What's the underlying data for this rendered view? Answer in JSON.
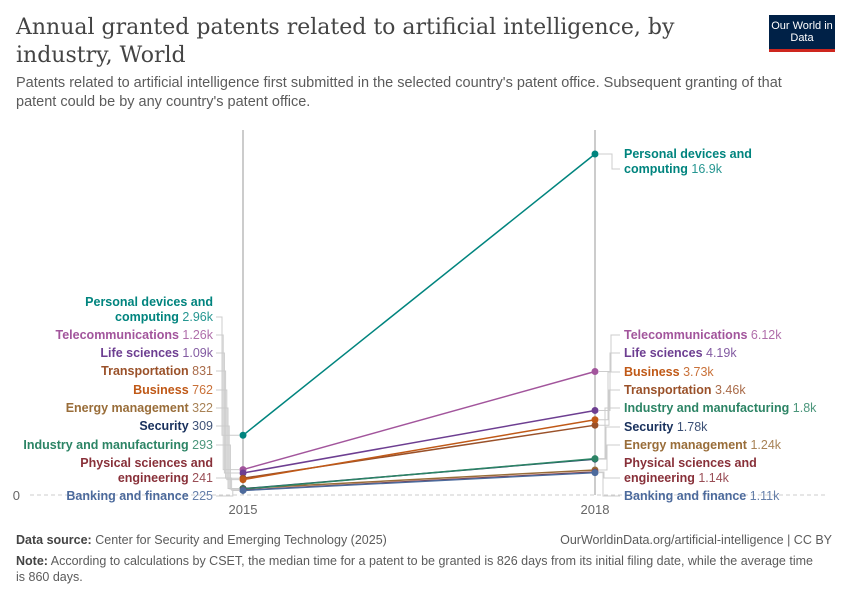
{
  "title": "Annual granted patents related to artificial intelligence, by industry, World",
  "subtitle": "Patents related to artificial intelligence first submitted in the selected country's patent office. Subsequent granting of that patent could be by any country's patent office.",
  "logo": "Our World in Data",
  "footer": {
    "source_label": "Data source:",
    "source": "Center for Security and Emerging Technology (2025)",
    "url": "OurWorldinData.org/artificial-intelligence | CC BY",
    "note_label": "Note:",
    "note": "According to calculations by CSET, the median time for a patent to be granted is 826 days from its initial filing date, while the average time is 860 days."
  },
  "chart_data": {
    "type": "line",
    "x": [
      2015,
      2018
    ],
    "x_tick_labels": [
      "2015",
      "2018"
    ],
    "y_tick_labels": [
      "0"
    ],
    "ylim": [
      0,
      17000
    ],
    "grid": "dashed baseline at 0",
    "series": [
      {
        "name": "Personal devices and computing",
        "values": [
          2960,
          16900
        ],
        "labels": [
          "2.96k",
          "16.9k"
        ],
        "color": "#00847e"
      },
      {
        "name": "Telecommunications",
        "values": [
          1260,
          6120
        ],
        "labels": [
          "1.26k",
          "6.12k"
        ],
        "color": "#a2559c"
      },
      {
        "name": "Life sciences",
        "values": [
          1090,
          4190
        ],
        "labels": [
          "1.09k",
          "4.19k"
        ],
        "color": "#6d3e91"
      },
      {
        "name": "Transportation",
        "values": [
          831,
          3460
        ],
        "labels": [
          "831",
          "3.46k"
        ],
        "color": "#9a5129"
      },
      {
        "name": "Business",
        "values": [
          762,
          3730
        ],
        "labels": [
          "762",
          "3.73k"
        ],
        "color": "#c05917"
      },
      {
        "name": "Energy management",
        "values": [
          322,
          1240
        ],
        "labels": [
          "322",
          "1.24k"
        ],
        "color": "#996d39"
      },
      {
        "name": "Security",
        "values": [
          309,
          1780
        ],
        "labels": [
          "309",
          "1.78k"
        ],
        "color": "#18305c"
      },
      {
        "name": "Industry and manufacturing",
        "values": [
          293,
          1800
        ],
        "labels": [
          "293",
          "1.8k"
        ],
        "color": "#2c8465"
      },
      {
        "name": "Physical sciences and engineering",
        "values": [
          241,
          1140
        ],
        "labels": [
          "241",
          "1.14k"
        ],
        "color": "#883039"
      },
      {
        "name": "Banking and finance",
        "values": [
          225,
          1110
        ],
        "labels": [
          "225",
          "1.11k"
        ],
        "color": "#4c6a9c"
      }
    ]
  }
}
